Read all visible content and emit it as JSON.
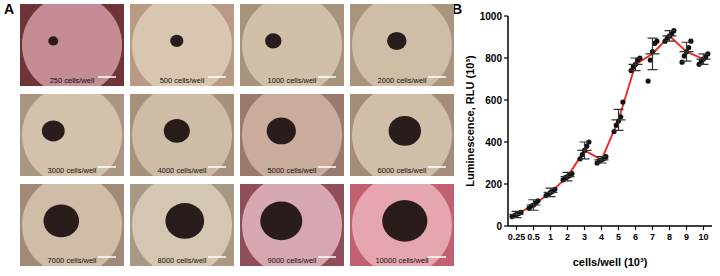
{
  "panel_labels": [
    "A",
    "B"
  ],
  "images": {
    "captions": [
      "250 cells/well",
      "500 cells/well",
      "1000 cells/well",
      "2000 cells/well",
      "3000 cells/well",
      "4000 cells/well",
      "5000 cells/well",
      "6000 cells/well",
      "7000 cells/well",
      "8000 cells/well",
      "9000 cells/well",
      "10000 cells/well"
    ]
  },
  "chart_data": {
    "type": "line",
    "x_label": "cells/well (10³)",
    "y_label": "Luminescence, RLU (10³)",
    "categories": [
      "0.25",
      "0.5",
      "1",
      "2",
      "3",
      "4",
      "5",
      "6",
      "7",
      "8",
      "9",
      "10"
    ],
    "values": [
      55,
      100,
      160,
      235,
      360,
      315,
      505,
      770,
      820,
      905,
      830,
      795
    ],
    "errors": [
      15,
      25,
      20,
      20,
      40,
      15,
      50,
      30,
      75,
      25,
      45,
      25
    ],
    "points": [
      [
        45,
        50,
        55,
        60,
        65
      ],
      [
        85,
        95,
        100,
        110,
        120
      ],
      [
        145,
        150,
        160,
        165,
        175
      ],
      [
        220,
        230,
        235,
        240,
        250
      ],
      [
        320,
        340,
        360,
        380,
        400
      ],
      [
        300,
        310,
        315,
        320,
        330
      ],
      [
        450,
        480,
        500,
        520,
        590
      ],
      [
        740,
        760,
        770,
        790,
        800
      ],
      [
        690,
        790,
        830,
        870,
        880
      ],
      [
        880,
        895,
        905,
        915,
        930
      ],
      [
        780,
        810,
        830,
        850,
        880
      ],
      [
        770,
        785,
        795,
        805,
        820
      ]
    ],
    "color": "#e8322a",
    "marker": "circle",
    "ylim": [
      0,
      1000
    ],
    "yticks": [
      0,
      200,
      400,
      600,
      800,
      1000
    ]
  }
}
